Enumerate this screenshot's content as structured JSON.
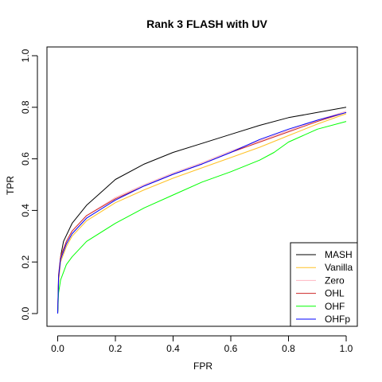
{
  "chart_data": {
    "type": "line",
    "title": "Rank 3 FLASH with UV",
    "xlabel": "FPR",
    "ylabel": "TPR",
    "xlim": [
      0,
      1
    ],
    "ylim": [
      0,
      1
    ],
    "xticks": [
      "0.0",
      "0.2",
      "0.4",
      "0.6",
      "0.8",
      "1.0"
    ],
    "yticks": [
      "0.0",
      "0.2",
      "0.4",
      "0.6",
      "0.8",
      "1.0"
    ],
    "grid": false,
    "legend": {
      "position": "bottom-right"
    },
    "series": [
      {
        "name": "MASH",
        "color": "#000000",
        "points": [
          [
            0,
            0.0
          ],
          [
            0.003,
            0.13
          ],
          [
            0.01,
            0.22
          ],
          [
            0.02,
            0.28
          ],
          [
            0.05,
            0.35
          ],
          [
            0.1,
            0.42
          ],
          [
            0.15,
            0.47
          ],
          [
            0.2,
            0.52
          ],
          [
            0.3,
            0.58
          ],
          [
            0.4,
            0.625
          ],
          [
            0.5,
            0.66
          ],
          [
            0.6,
            0.695
          ],
          [
            0.7,
            0.73
          ],
          [
            0.8,
            0.76
          ],
          [
            0.9,
            0.78
          ],
          [
            1.0,
            0.8
          ]
        ]
      },
      {
        "name": "Vanilla",
        "color": "#FFC125",
        "points": [
          [
            0,
            0.0
          ],
          [
            0.003,
            0.12
          ],
          [
            0.01,
            0.2
          ],
          [
            0.03,
            0.26
          ],
          [
            0.05,
            0.3
          ],
          [
            0.1,
            0.36
          ],
          [
            0.2,
            0.43
          ],
          [
            0.3,
            0.48
          ],
          [
            0.4,
            0.525
          ],
          [
            0.5,
            0.565
          ],
          [
            0.6,
            0.605
          ],
          [
            0.7,
            0.645
          ],
          [
            0.8,
            0.69
          ],
          [
            0.9,
            0.735
          ],
          [
            1.0,
            0.775
          ]
        ]
      },
      {
        "name": "Zero",
        "color": "#FFB6C1",
        "points": [
          [
            0,
            0.0
          ],
          [
            0.003,
            0.15
          ],
          [
            0.01,
            0.22
          ],
          [
            0.03,
            0.28
          ],
          [
            0.05,
            0.32
          ],
          [
            0.1,
            0.38
          ],
          [
            0.2,
            0.45
          ],
          [
            0.3,
            0.5
          ],
          [
            0.4,
            0.545
          ],
          [
            0.5,
            0.585
          ],
          [
            0.6,
            0.63
          ],
          [
            0.7,
            0.67
          ],
          [
            0.8,
            0.71
          ],
          [
            0.9,
            0.75
          ],
          [
            1.0,
            0.785
          ]
        ]
      },
      {
        "name": "OHL",
        "color": "#CD2626",
        "points": [
          [
            0,
            0.0
          ],
          [
            0.003,
            0.15
          ],
          [
            0.01,
            0.22
          ],
          [
            0.03,
            0.28
          ],
          [
            0.05,
            0.32
          ],
          [
            0.1,
            0.38
          ],
          [
            0.2,
            0.445
          ],
          [
            0.3,
            0.495
          ],
          [
            0.4,
            0.54
          ],
          [
            0.5,
            0.58
          ],
          [
            0.6,
            0.625
          ],
          [
            0.7,
            0.665
          ],
          [
            0.8,
            0.705
          ],
          [
            0.9,
            0.745
          ],
          [
            1.0,
            0.78
          ]
        ]
      },
      {
        "name": "OHF",
        "color": "#00FF00",
        "points": [
          [
            0,
            0.0
          ],
          [
            0.003,
            0.08
          ],
          [
            0.01,
            0.13
          ],
          [
            0.03,
            0.19
          ],
          [
            0.05,
            0.22
          ],
          [
            0.1,
            0.28
          ],
          [
            0.2,
            0.35
          ],
          [
            0.3,
            0.41
          ],
          [
            0.4,
            0.46
          ],
          [
            0.5,
            0.51
          ],
          [
            0.6,
            0.55
          ],
          [
            0.7,
            0.595
          ],
          [
            0.75,
            0.625
          ],
          [
            0.8,
            0.665
          ],
          [
            0.9,
            0.715
          ],
          [
            1.0,
            0.745
          ]
        ]
      },
      {
        "name": "OHFp",
        "color": "#0000FF",
        "points": [
          [
            0,
            0.0
          ],
          [
            0.003,
            0.14
          ],
          [
            0.01,
            0.21
          ],
          [
            0.03,
            0.27
          ],
          [
            0.05,
            0.31
          ],
          [
            0.1,
            0.37
          ],
          [
            0.2,
            0.44
          ],
          [
            0.3,
            0.495
          ],
          [
            0.4,
            0.54
          ],
          [
            0.5,
            0.58
          ],
          [
            0.6,
            0.625
          ],
          [
            0.7,
            0.675
          ],
          [
            0.8,
            0.715
          ],
          [
            0.9,
            0.75
          ],
          [
            1.0,
            0.78
          ]
        ]
      }
    ]
  }
}
